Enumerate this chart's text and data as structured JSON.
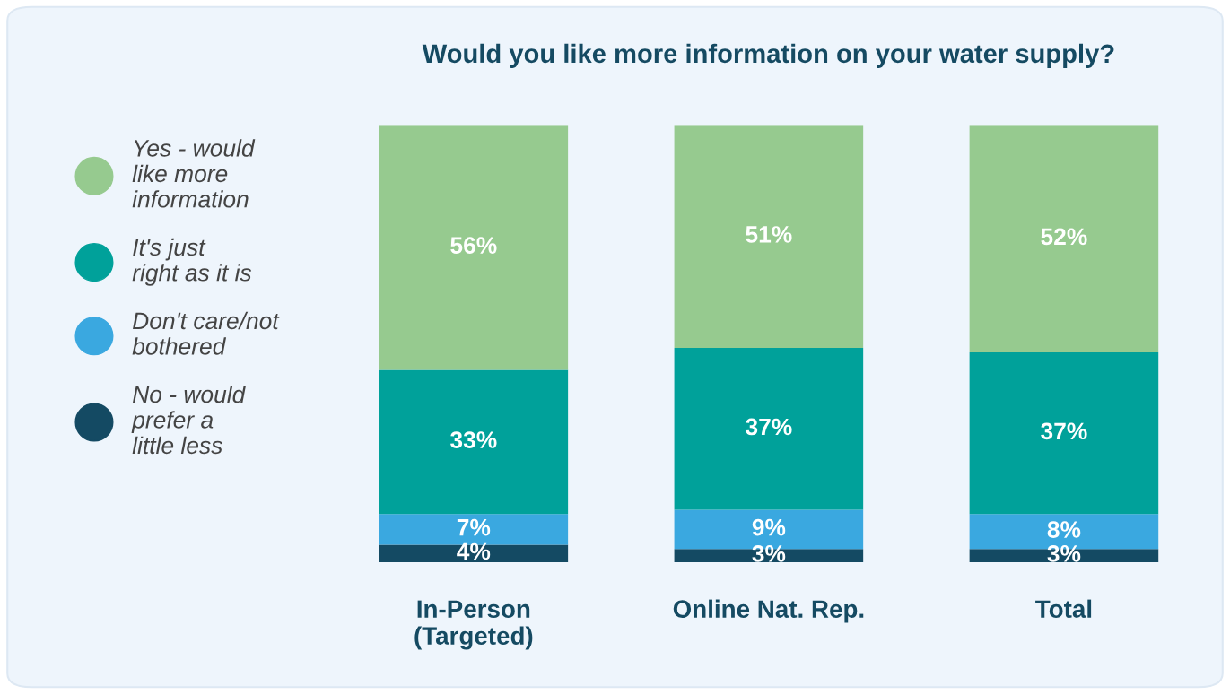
{
  "chart_data": {
    "type": "bar",
    "title": "Would you like more information on your water supply?",
    "categories": [
      "In-Person\n(Targeted)",
      "Online Nat. Rep.",
      "Total"
    ],
    "stacked": true,
    "legend": "left",
    "series": [
      {
        "name": "No - would prefer a little less",
        "color": "#144a63",
        "values": [
          4,
          3,
          3
        ],
        "value_labels": [
          "4%",
          "3%",
          "3%"
        ]
      },
      {
        "name": "Don't care/not bothered",
        "color": "#3aa8e0",
        "values": [
          7,
          9,
          8
        ],
        "value_labels": [
          "7%",
          "9%",
          "8%"
        ]
      },
      {
        "name": "It's just right as it is",
        "color": "#00a19a",
        "values": [
          33,
          37,
          37
        ],
        "value_labels": [
          "33%",
          "37%",
          "37%"
        ]
      },
      {
        "name": "Yes - would like more information",
        "color": "#96ca8f",
        "values": [
          56,
          51,
          52
        ],
        "value_labels": [
          "56%",
          "51%",
          "52%"
        ]
      }
    ]
  }
}
